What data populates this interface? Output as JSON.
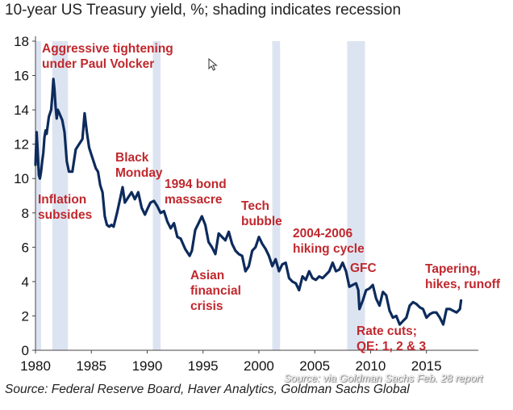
{
  "title": "10-year US Treasury yield, %; shading indicates recession",
  "source": "Source: Federal Reserve Board, Haver Analytics, Goldman Sachs Global",
  "watermark": "Source: via Goldman Sachs Feb. 28 report",
  "colors": {
    "line": "#0d2b5c",
    "recession": "#dde4f1",
    "annotation": "#c0282d",
    "axis": "#444444"
  },
  "cursor_icon": "mouse-pointer-icon",
  "chart_data": {
    "type": "line",
    "title": "10-year US Treasury yield, %; shading indicates recession",
    "xlabel": "",
    "ylabel": "%",
    "xlim": [
      1980,
      2018.2
    ],
    "ylim": [
      0,
      18
    ],
    "xticks": [
      1980,
      1985,
      1990,
      1995,
      2000,
      2005,
      2010,
      2015
    ],
    "yticks": [
      0,
      2,
      4,
      6,
      8,
      10,
      12,
      14,
      16,
      18
    ],
    "recessions": [
      [
        1980.0,
        1980.5
      ],
      [
        1981.5,
        1982.9
      ],
      [
        1990.5,
        1991.2
      ],
      [
        2001.2,
        2001.9
      ],
      [
        2007.9,
        2009.5
      ]
    ],
    "series": [
      {
        "name": "10-year US Treasury yield",
        "x": [
          1980.0,
          1980.1,
          1980.2,
          1980.3,
          1980.4,
          1980.5,
          1980.6,
          1980.7,
          1980.8,
          1980.9,
          1981.0,
          1981.2,
          1981.4,
          1981.5,
          1981.6,
          1981.7,
          1981.8,
          1981.9,
          1982.0,
          1982.2,
          1982.4,
          1982.6,
          1982.8,
          1983.0,
          1983.3,
          1983.6,
          1983.9,
          1984.2,
          1984.4,
          1984.6,
          1984.8,
          1985.0,
          1985.2,
          1985.4,
          1985.6,
          1985.8,
          1986.0,
          1986.2,
          1986.4,
          1986.6,
          1986.8,
          1987.0,
          1987.3,
          1987.5,
          1987.8,
          1988.0,
          1988.3,
          1988.6,
          1988.9,
          1989.2,
          1989.5,
          1989.8,
          1990.0,
          1990.3,
          1990.6,
          1990.9,
          1991.2,
          1991.5,
          1991.8,
          1992.1,
          1992.4,
          1992.7,
          1993.0,
          1993.4,
          1993.8,
          1994.0,
          1994.3,
          1994.6,
          1994.9,
          1995.2,
          1995.5,
          1995.8,
          1996.1,
          1996.4,
          1996.7,
          1997.0,
          1997.3,
          1997.6,
          1997.9,
          1998.2,
          1998.5,
          1998.8,
          1999.1,
          1999.4,
          1999.7,
          2000.0,
          2000.3,
          2000.6,
          2000.9,
          2001.2,
          2001.5,
          2001.8,
          2002.1,
          2002.4,
          2002.7,
          2003.0,
          2003.3,
          2003.6,
          2003.9,
          2004.2,
          2004.5,
          2004.8,
          2005.1,
          2005.4,
          2005.7,
          2006.0,
          2006.3,
          2006.6,
          2006.9,
          2007.2,
          2007.5,
          2007.8,
          2008.1,
          2008.4,
          2008.7,
          2008.9,
          2009.0,
          2009.3,
          2009.6,
          2009.9,
          2010.2,
          2010.5,
          2010.8,
          2011.1,
          2011.4,
          2011.7,
          2012.0,
          2012.3,
          2012.6,
          2012.9,
          2013.2,
          2013.5,
          2013.8,
          2014.1,
          2014.4,
          2014.7,
          2015.0,
          2015.3,
          2015.6,
          2015.9,
          2016.2,
          2016.5,
          2016.8,
          2017.1,
          2017.4,
          2017.7,
          2018.0,
          2018.1
        ],
        "values": [
          10.8,
          12.7,
          11.5,
          10.2,
          10.0,
          10.4,
          11.0,
          11.5,
          12.4,
          12.8,
          12.6,
          13.6,
          14.0,
          14.8,
          15.8,
          15.2,
          14.2,
          13.5,
          14.0,
          13.7,
          13.4,
          12.7,
          11.0,
          10.4,
          10.4,
          11.7,
          12.0,
          12.3,
          13.8,
          12.7,
          11.8,
          11.4,
          11.0,
          10.6,
          10.4,
          9.6,
          9.2,
          7.8,
          7.3,
          7.2,
          7.3,
          7.2,
          8.0,
          8.6,
          9.5,
          8.6,
          8.9,
          9.2,
          8.8,
          9.2,
          8.3,
          7.9,
          8.2,
          8.6,
          8.7,
          8.4,
          8.0,
          8.1,
          7.5,
          7.1,
          7.4,
          6.6,
          6.5,
          5.9,
          5.5,
          5.8,
          7.0,
          7.4,
          7.8,
          7.3,
          6.3,
          6.0,
          5.6,
          6.8,
          6.6,
          6.4,
          6.9,
          6.2,
          5.8,
          5.6,
          5.5,
          4.6,
          4.9,
          5.8,
          6.0,
          6.6,
          6.2,
          5.9,
          5.5,
          4.9,
          5.3,
          4.6,
          5.0,
          5.1,
          4.2,
          4.0,
          3.9,
          3.5,
          4.3,
          4.1,
          4.6,
          4.2,
          4.1,
          4.3,
          4.2,
          4.4,
          4.6,
          5.1,
          4.6,
          4.7,
          5.1,
          4.6,
          3.7,
          3.8,
          3.9,
          3.5,
          2.4,
          2.9,
          3.5,
          3.6,
          3.8,
          3.0,
          2.6,
          3.4,
          3.2,
          2.3,
          1.9,
          2.0,
          1.5,
          1.7,
          1.9,
          2.6,
          2.8,
          2.7,
          2.5,
          2.4,
          1.9,
          2.1,
          2.2,
          2.2,
          1.9,
          1.5,
          2.4,
          2.4,
          2.3,
          2.2,
          2.4,
          2.9
        ]
      }
    ],
    "annotations": [
      {
        "lines": [
          "Aggressive tightening",
          "under Paul Volcker"
        ]
      },
      {
        "lines": [
          "Inflation",
          "subsides"
        ]
      },
      {
        "lines": [
          "Black",
          "Monday"
        ]
      },
      {
        "lines": [
          "1994 bond",
          "massacre"
        ]
      },
      {
        "lines": [
          "Asian",
          "financial",
          "crisis"
        ]
      },
      {
        "lines": [
          "Tech",
          "bubble"
        ]
      },
      {
        "lines": [
          "2004-2006",
          "hiking cycle"
        ]
      },
      {
        "lines": [
          "GFC"
        ]
      },
      {
        "lines": [
          "Rate cuts;",
          "QE: 1, 2 & 3"
        ]
      },
      {
        "lines": [
          "Tapering,",
          "hikes, runoff"
        ]
      }
    ]
  }
}
